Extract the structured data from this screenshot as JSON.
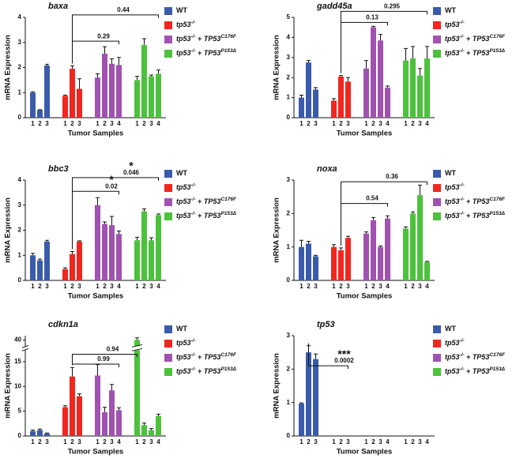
{
  "chart_data": [
    {
      "type": "bar",
      "title": "baxa",
      "ylabel": "mRNA Expression",
      "xlabel": "Tumor Samples",
      "ylim": [
        0,
        4
      ],
      "yticks": [
        0,
        1,
        2,
        3,
        4
      ],
      "series": [
        {
          "name": [
            "WT"
          ],
          "color": "#3a5bab",
          "categories": [
            "1",
            "2",
            "3"
          ],
          "values": [
            1.0,
            0.3,
            2.08
          ],
          "errors": [
            0.03,
            0.02,
            0.05
          ]
        },
        {
          "name": [
            "tp53",
            "-/-"
          ],
          "color": "#f0261f",
          "categories": [
            "1",
            "2",
            "3"
          ],
          "values": [
            0.87,
            1.95,
            1.15
          ],
          "errors": [
            0.03,
            0.12,
            0.4
          ]
        },
        {
          "name": [
            "tp53",
            "-/-",
            " + ",
            "TP53",
            "C176F"
          ],
          "color": "#a052b0",
          "categories": [
            "1",
            "2",
            "3",
            "4"
          ],
          "values": [
            1.6,
            2.55,
            2.15,
            2.1
          ],
          "errors": [
            0.15,
            0.28,
            0.2,
            0.3
          ]
        },
        {
          "name": [
            "tp53",
            "-/-",
            " + ",
            "TP53",
            "P153Δ"
          ],
          "color": "#4cc23c",
          "categories": [
            "1",
            "2",
            "3",
            "4"
          ],
          "values": [
            1.5,
            2.9,
            1.65,
            1.75
          ],
          "errors": [
            0.15,
            0.25,
            0.05,
            0.15
          ]
        }
      ],
      "annotations": [
        {
          "label": "0.44"
        },
        {
          "label": "0.29"
        }
      ]
    },
    {
      "type": "bar",
      "title": "gadd45a",
      "ylabel": "mRNA Expression",
      "xlabel": "Tumor Samples",
      "ylim": [
        0,
        5
      ],
      "yticks": [
        0,
        1,
        2,
        3,
        4,
        5
      ],
      "series": [
        {
          "name": [
            "WT"
          ],
          "color": "#3a5bab",
          "categories": [
            "1",
            "2",
            "3"
          ],
          "values": [
            1.0,
            2.75,
            1.4
          ],
          "errors": [
            0.12,
            0.1,
            0.1
          ]
        },
        {
          "name": [
            "tp53",
            "-/-"
          ],
          "color": "#f0261f",
          "categories": [
            "1",
            "2",
            "3"
          ],
          "values": [
            0.85,
            2.05,
            1.8
          ],
          "errors": [
            0.1,
            0.05,
            0.2
          ]
        },
        {
          "name": [
            "tp53",
            "-/-",
            " + ",
            "TP53",
            "C176F"
          ],
          "color": "#a052b0",
          "categories": [
            "1",
            "2",
            "3",
            "4"
          ],
          "values": [
            2.45,
            4.5,
            3.85,
            1.5
          ],
          "errors": [
            0.4,
            0.05,
            0.3,
            0.08
          ]
        },
        {
          "name": [
            "tp53",
            "-/-",
            " + ",
            "TP53",
            "P153Δ"
          ],
          "color": "#4cc23c",
          "categories": [
            "1",
            "2",
            "3",
            "4"
          ],
          "values": [
            2.85,
            2.95,
            2.1,
            2.95
          ],
          "errors": [
            0.6,
            0.6,
            0.35,
            0.6
          ]
        }
      ],
      "annotations": [
        {
          "label": "0.295"
        },
        {
          "label": "0.13"
        }
      ]
    },
    {
      "type": "bar",
      "title": "bbc3",
      "ylabel": "mRNA Expression",
      "xlabel": "Tumor Samples",
      "ylim": [
        0,
        4
      ],
      "yticks": [
        0,
        1,
        2,
        3,
        4
      ],
      "series": [
        {
          "name": [
            "WT"
          ],
          "color": "#3a5bab",
          "categories": [
            "1",
            "2",
            "3"
          ],
          "values": [
            1.0,
            0.8,
            1.55
          ],
          "errors": [
            0.08,
            0.05,
            0.05
          ]
        },
        {
          "name": [
            "tp53",
            "-/-"
          ],
          "color": "#f0261f",
          "categories": [
            "1",
            "2",
            "3"
          ],
          "values": [
            0.45,
            1.05,
            1.55
          ],
          "errors": [
            0.05,
            0.1,
            0.03
          ]
        },
        {
          "name": [
            "tp53",
            "-/-",
            " + ",
            "TP53",
            "C176F"
          ],
          "color": "#a052b0",
          "categories": [
            "1",
            "2",
            "3",
            "4"
          ],
          "values": [
            3.0,
            2.25,
            2.2,
            1.85
          ],
          "errors": [
            0.3,
            0.08,
            0.35,
            0.12
          ]
        },
        {
          "name": [
            "tp53",
            "-/-",
            " + ",
            "TP53",
            "P153Δ"
          ],
          "color": "#4cc23c",
          "categories": [
            "1",
            "2",
            "3",
            "4"
          ],
          "values": [
            1.6,
            2.75,
            1.6,
            2.6
          ],
          "errors": [
            0.12,
            0.1,
            0.1,
            0.05
          ]
        }
      ],
      "annotations": [
        {
          "label": "0.02",
          "stars": "*"
        },
        {
          "label": "0.046",
          "stars": "*"
        }
      ]
    },
    {
      "type": "bar",
      "title": "noxa",
      "ylabel": "mRNA Expression",
      "xlabel": "Tumor Samples",
      "ylim": [
        0,
        3
      ],
      "yticks": [
        0,
        1,
        2,
        3
      ],
      "series": [
        {
          "name": [
            "WT"
          ],
          "color": "#3a5bab",
          "categories": [
            "1",
            "2",
            "3"
          ],
          "values": [
            1.0,
            1.1,
            0.72
          ],
          "errors": [
            0.2,
            0.07,
            0.03
          ]
        },
        {
          "name": [
            "tp53",
            "-/-"
          ],
          "color": "#f0261f",
          "categories": [
            "1",
            "2",
            "3"
          ],
          "values": [
            1.0,
            0.9,
            1.27
          ],
          "errors": [
            0.07,
            0.07,
            0.05
          ]
        },
        {
          "name": [
            "tp53",
            "-/-",
            " + ",
            "TP53",
            "C176F"
          ],
          "color": "#a052b0",
          "categories": [
            "1",
            "2",
            "3",
            "4"
          ],
          "values": [
            1.4,
            1.8,
            1.0,
            1.85
          ],
          "errors": [
            0.05,
            0.08,
            0.03,
            0.08
          ]
        },
        {
          "name": [
            "tp53",
            "-/-",
            " + ",
            "TP53",
            "P153Δ"
          ],
          "color": "#4cc23c",
          "categories": [
            "1",
            "2",
            "3",
            "4"
          ],
          "values": [
            1.55,
            2.0,
            2.55,
            0.55
          ],
          "errors": [
            0.05,
            0.05,
            0.3,
            0.02
          ]
        }
      ],
      "annotations": [
        {
          "label": "0.54"
        },
        {
          "label": "0.36"
        }
      ]
    },
    {
      "type": "bar",
      "title": "cdkn1a",
      "ylabel": "mRNA Expression",
      "xlabel": "Tumor Samples",
      "ylim": [
        0,
        41
      ],
      "yticks": [
        0,
        5,
        10,
        15,
        40
      ],
      "axis_break": [
        17,
        38
      ],
      "series": [
        {
          "name": [
            "WT"
          ],
          "color": "#3a5bab",
          "categories": [
            "1",
            "2",
            "3"
          ],
          "values": [
            1.0,
            1.2,
            0.5
          ],
          "errors": [
            0.2,
            0.2,
            0.1
          ]
        },
        {
          "name": [
            "tp53",
            "-/-"
          ],
          "color": "#f0261f",
          "categories": [
            "1",
            "2",
            "3"
          ],
          "values": [
            5.8,
            12.0,
            8.0
          ],
          "errors": [
            0.3,
            1.8,
            0.5
          ]
        },
        {
          "name": [
            "tp53",
            "-/-",
            " + ",
            "TP53",
            "C176F"
          ],
          "color": "#a052b0",
          "categories": [
            "1",
            "2",
            "3",
            "4"
          ],
          "values": [
            12.2,
            4.8,
            9.2,
            5.2
          ],
          "errors": [
            2.2,
            1.0,
            1.2,
            0.5
          ]
        },
        {
          "name": [
            "tp53",
            "-/-",
            " + ",
            "TP53",
            "P153Δ"
          ],
          "color": "#4cc23c",
          "categories": [
            "1",
            "2",
            "3",
            "4"
          ],
          "values": [
            40,
            2.2,
            1.2,
            4.0
          ],
          "errors": [
            0.5,
            0.4,
            0.3,
            0.4
          ]
        }
      ],
      "annotations": [
        {
          "label": "0.99"
        },
        {
          "label": "0.94"
        }
      ]
    },
    {
      "type": "bar",
      "title": "tp53",
      "ylabel": "mRNA Expression",
      "xlabel": "Tumor Samples",
      "ylim": [
        0,
        3
      ],
      "yticks": [
        0,
        1,
        2,
        3
      ],
      "series": [
        {
          "name": [
            "WT"
          ],
          "color": "#3a5bab",
          "categories": [
            "1",
            "2",
            "3"
          ],
          "values": [
            0.97,
            2.5,
            2.3
          ],
          "errors": [
            0.02,
            0.2,
            0.15
          ]
        },
        {
          "name": [
            "tp53",
            "-/-"
          ],
          "color": "#f0261f",
          "categories": [
            "1",
            "2",
            "3"
          ],
          "values": [
            0,
            0,
            0
          ],
          "errors": [
            0,
            0,
            0
          ]
        },
        {
          "name": [
            "tp53",
            "-/-",
            " + ",
            "TP53",
            "C176F"
          ],
          "color": "#a052b0",
          "categories": [
            "1",
            "2",
            "3",
            "4"
          ],
          "values": [
            0,
            0,
            0,
            0
          ],
          "errors": [
            0,
            0,
            0,
            0
          ]
        },
        {
          "name": [
            "tp53",
            "-/-",
            " + ",
            "TP53",
            "P153Δ"
          ],
          "color": "#4cc23c",
          "categories": [
            "1",
            "2",
            "3",
            "4"
          ],
          "values": [
            0,
            0,
            0,
            0
          ],
          "errors": [
            0,
            0,
            0,
            0
          ]
        }
      ],
      "annotations": [
        {
          "label": "0.0002",
          "stars": "***"
        }
      ]
    }
  ]
}
